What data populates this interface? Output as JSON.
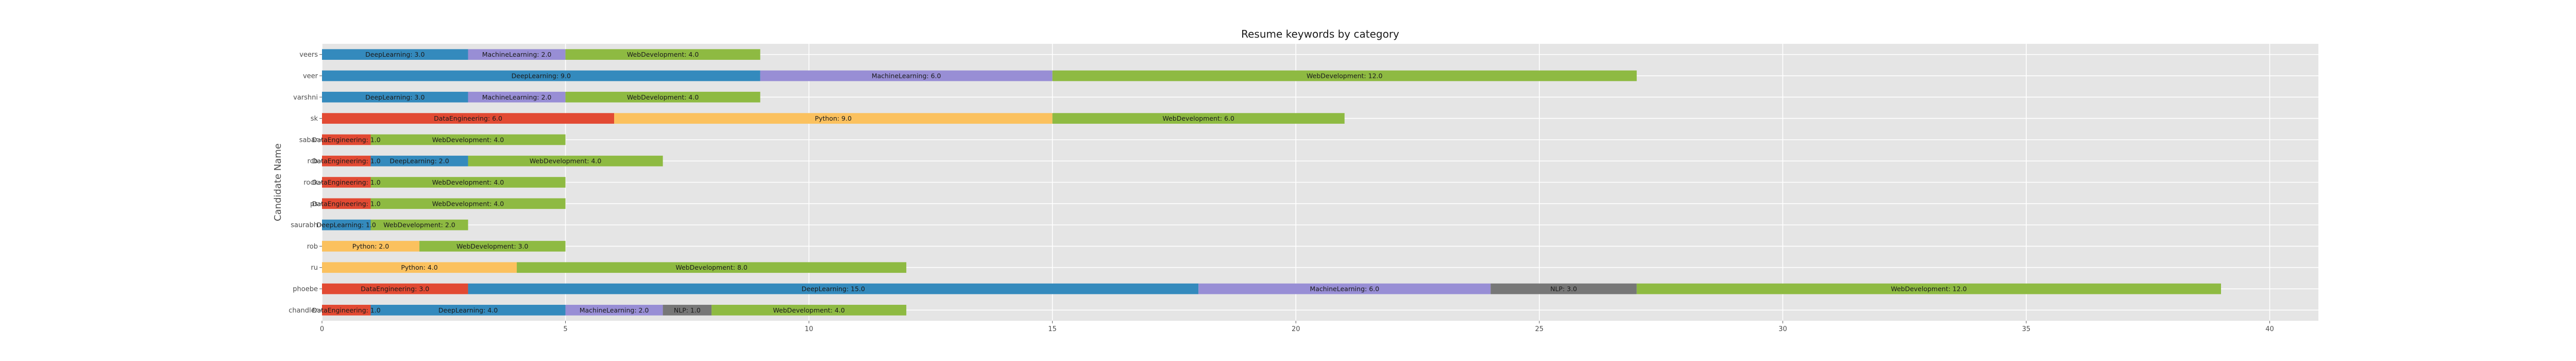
{
  "chart_data": {
    "type": "bar",
    "orientation": "horizontal",
    "stacked": true,
    "title": "Resume keywords by category",
    "xlabel": "",
    "ylabel": "Candidate Name",
    "xlim": [
      0,
      41
    ],
    "xticks": [
      0,
      5,
      10,
      15,
      20,
      25,
      30,
      35,
      40
    ],
    "grid": true,
    "legend": "none",
    "categories": [
      "veers",
      "veer",
      "varshni",
      "sk",
      "sabar",
      "rcb",
      "rock",
      "ps",
      "saurabh",
      "rob",
      "ru",
      "phoebe",
      "chandler"
    ],
    "series": [
      {
        "name": "DataEngineering",
        "color": "#E24A33",
        "values": [
          0,
          0,
          0,
          6.0,
          1.0,
          1.0,
          1.0,
          1.0,
          0,
          0,
          0,
          3.0,
          1.0
        ]
      },
      {
        "name": "DeepLearning",
        "color": "#348ABD",
        "values": [
          3.0,
          9.0,
          3.0,
          0,
          0,
          2.0,
          0,
          0,
          1.0,
          0,
          0,
          15.0,
          4.0
        ]
      },
      {
        "name": "MachineLearning",
        "color": "#988ED5",
        "values": [
          2.0,
          6.0,
          2.0,
          0,
          0,
          0,
          0,
          0,
          0,
          0,
          0,
          6.0,
          2.0
        ]
      },
      {
        "name": "NLP",
        "color": "#777777",
        "values": [
          0,
          0,
          0,
          0,
          0,
          0,
          0,
          0,
          0,
          0,
          0,
          3.0,
          1.0
        ]
      },
      {
        "name": "Python",
        "color": "#FBC15E",
        "values": [
          0,
          0,
          0,
          9.0,
          0,
          0,
          0,
          0,
          0,
          2.0,
          4.0,
          0,
          0
        ]
      },
      {
        "name": "WebDevelopment",
        "color": "#8EBA42",
        "values": [
          4.0,
          12.0,
          4.0,
          6.0,
          4.0,
          4.0,
          4.0,
          4.0,
          2.0,
          3.0,
          8.0,
          12.0,
          4.0
        ]
      }
    ]
  }
}
